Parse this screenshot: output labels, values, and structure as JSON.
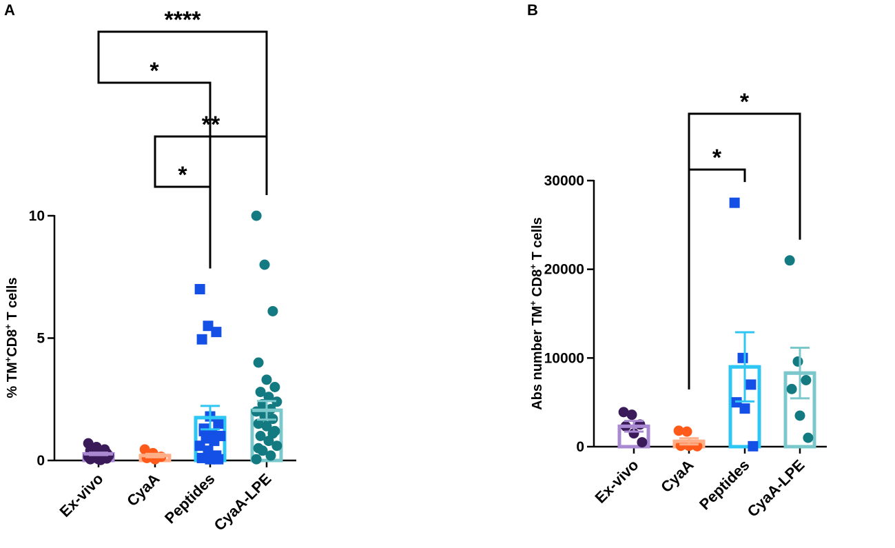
{
  "chart_data": [
    {
      "type": "scatter",
      "panel": "A",
      "ylabel_parts": [
        "% TM",
        "+",
        "CD8",
        "+",
        " T cells"
      ],
      "ylim": [
        0,
        10
      ],
      "yticks": [
        0,
        5,
        10
      ],
      "categories": [
        "Ex-vivo",
        "CyaA",
        "Peptides",
        "CyaA-LPE"
      ],
      "colors": [
        "#3b1a5a",
        "#ff5a1a",
        "#1450e6",
        "#127a80"
      ],
      "bar_colors": [
        "#a98ad2",
        "#ffae87",
        "#2ec6f2",
        "#7bc8cc"
      ],
      "markers": [
        "circle",
        "circle",
        "square",
        "circle"
      ],
      "means": [
        0.27,
        0.2,
        1.75,
        2.05
      ],
      "sem": [
        0.05,
        0.07,
        0.48,
        0.38
      ],
      "points": [
        [
          0.7,
          0.55,
          0.45,
          0.4,
          0.35,
          0.3,
          0.25,
          0.25,
          0.2,
          0.2,
          0.15,
          0.15,
          0.1,
          0.1,
          0.05,
          0.05,
          0.08,
          0.12,
          0.02
        ],
        [
          0.45,
          0.3,
          0.15,
          0.1,
          0.05
        ],
        [
          7.0,
          5.5,
          5.25,
          4.95,
          1.8,
          1.5,
          1.3,
          1.1,
          1.0,
          0.9,
          0.8,
          0.6,
          0.4,
          0.2,
          0.1,
          0.05,
          0.05,
          1.2
        ],
        [
          10.0,
          8.0,
          6.1,
          4.0,
          3.3,
          3.0,
          2.8,
          2.6,
          2.4,
          2.3,
          2.1,
          2.0,
          1.9,
          1.7,
          1.5,
          1.4,
          1.2,
          1.0,
          0.8,
          0.6,
          0.4,
          0.2,
          0.05,
          1.8,
          1.1,
          0.5
        ]
      ],
      "significance": [
        {
          "from": 0,
          "to": 3,
          "label": "****"
        },
        {
          "from": 0,
          "to": 2,
          "label": "*"
        },
        {
          "from": 1,
          "to": 3,
          "label": "**"
        },
        {
          "from": 1,
          "to": 2,
          "label": "*"
        }
      ]
    },
    {
      "type": "bar",
      "panel": "B",
      "ylabel_parts": [
        "Abs number TM",
        "+",
        " CD8",
        "+",
        " T cells"
      ],
      "ylim": [
        0,
        30000
      ],
      "yticks": [
        0,
        10000,
        20000,
        30000
      ],
      "categories": [
        "Ex-vivo",
        "CyaA",
        "Peptides",
        "CyaA-LPE"
      ],
      "colors": [
        "#3b1a5a",
        "#ff5a1a",
        "#1450e6",
        "#127a80"
      ],
      "bar_colors": [
        "#a98ad2",
        "#ffae87",
        "#2ec6f2",
        "#7bc8cc"
      ],
      "markers": [
        "circle",
        "circle",
        "square",
        "circle"
      ],
      "means": [
        2300,
        600,
        9000,
        8300
      ],
      "sem": [
        600,
        350,
        3900,
        2850
      ],
      "points": [
        [
          3900,
          3600,
          2500,
          2300,
          1500,
          500
        ],
        [
          1800,
          1700,
          200,
          100,
          100,
          50
        ],
        [
          27500,
          10000,
          7000,
          5000,
          4300,
          50
        ],
        [
          21000,
          9600,
          7500,
          6500,
          3500,
          1000
        ]
      ],
      "significance": [
        {
          "from": 1,
          "to": 3,
          "label": "*"
        },
        {
          "from": 1,
          "to": 2,
          "label": "*"
        }
      ]
    }
  ]
}
